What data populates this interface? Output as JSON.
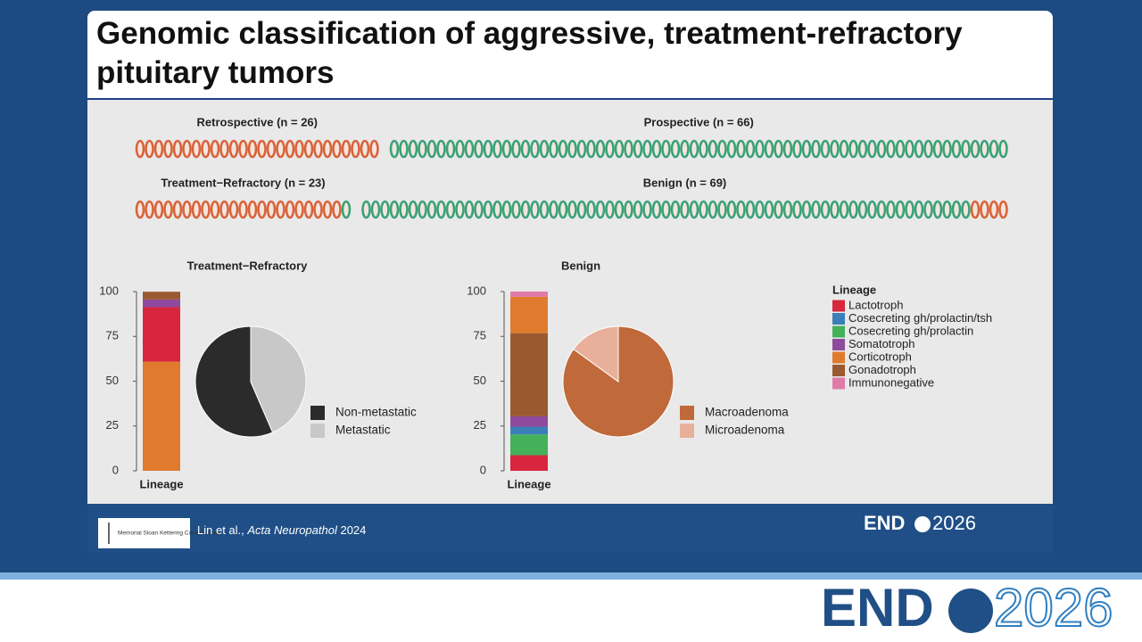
{
  "title": "Genomic classification of aggressive, treatment-refractory pituitary tumors",
  "cohort_rows": [
    {
      "groups": [
        {
          "label": "Retrospective (n = 26)",
          "segments": [
            {
              "count": 26,
              "color": "#d9633b"
            }
          ]
        },
        {
          "label": "Prospective (n = 66)",
          "segments": [
            {
              "count": 66,
              "color": "#3aa17a"
            }
          ]
        }
      ]
    },
    {
      "groups": [
        {
          "label": "Treatment−Refractory (n = 23)",
          "segments": [
            {
              "count": 22,
              "color": "#d9633b"
            },
            {
              "count": 1,
              "color": "#3aa17a"
            }
          ]
        },
        {
          "label": "Benign (n = 69)",
          "segments": [
            {
              "count": 65,
              "color": "#3aa17a"
            },
            {
              "count": 4,
              "color": "#d9633b"
            }
          ]
        }
      ]
    }
  ],
  "lineage_legend": {
    "title": "Lineage",
    "items": [
      {
        "name": "Lactotroph",
        "color": "#d7263d"
      },
      {
        "name": "Cosecreting gh/prolactin/tsh",
        "color": "#3a7fb8"
      },
      {
        "name": "Cosecreting gh/prolactin",
        "color": "#44b05a"
      },
      {
        "name": "Somatotroph",
        "color": "#8e4a9c"
      },
      {
        "name": "Corticotroph",
        "color": "#e07b2e"
      },
      {
        "name": "Gonadotroph",
        "color": "#9a5a30"
      },
      {
        "name": "Immunonegative",
        "color": "#e07aa8"
      }
    ]
  },
  "chart_data": [
    {
      "type": "bar",
      "stacked": true,
      "title": "Treatment−Refractory",
      "x_label": "Lineage",
      "categories": [
        null
      ],
      "ylim": [
        0,
        100
      ],
      "yticks": [
        0,
        25,
        50,
        75,
        100
      ],
      "series": [
        {
          "name": "Corticotroph",
          "color": "#e07b2e",
          "values": [
            60.9
          ]
        },
        {
          "name": "Lactotroph",
          "color": "#d7263d",
          "values": [
            30.4
          ]
        },
        {
          "name": "Somatotroph",
          "color": "#8e4a9c",
          "values": [
            4.3
          ]
        },
        {
          "name": "Gonadotroph",
          "color": "#9a5a30",
          "values": [
            4.3
          ]
        }
      ]
    },
    {
      "type": "pie",
      "categories": [
        "Non-metastatic",
        "Metastatic"
      ],
      "values": [
        56.5,
        43.5
      ],
      "colors": [
        "#2b2b2b",
        "#c8c8c8"
      ],
      "counterclock": true
    },
    {
      "type": "bar",
      "stacked": true,
      "title": "Benign",
      "x_label": "Lineage",
      "categories": [
        null
      ],
      "ylim": [
        0,
        100
      ],
      "yticks": [
        0,
        25,
        50,
        75,
        100
      ],
      "series": [
        {
          "name": "Lactotroph",
          "color": "#d7263d",
          "values": [
            8.7
          ]
        },
        {
          "name": "Cosecreting gh/prolactin",
          "color": "#44b05a",
          "values": [
            11.6
          ]
        },
        {
          "name": "Cosecreting gh/prolactin/tsh",
          "color": "#3a7fb8",
          "values": [
            4.3
          ]
        },
        {
          "name": "Somatotroph",
          "color": "#8e4a9c",
          "values": [
            5.8
          ]
        },
        {
          "name": "Gonadotroph",
          "color": "#9a5a30",
          "values": [
            46.4
          ]
        },
        {
          "name": "Corticotroph",
          "color": "#e07b2e",
          "values": [
            20.3
          ]
        },
        {
          "name": "Immunonegative",
          "color": "#e07aa8",
          "values": [
            2.9
          ]
        }
      ]
    },
    {
      "type": "pie",
      "categories": [
        "Macroadenoma",
        "Microadenoma"
      ],
      "values": [
        85,
        15
      ],
      "colors": [
        "#c0693a",
        "#e8b09a"
      ],
      "counterclock": false
    }
  ],
  "footer": {
    "logo_text": "Memorial Sloan Kettering Cancer Center",
    "citation": {
      "authors": "Lin et al.,",
      "journal": "Acta Neuropathol",
      "year": "2024"
    },
    "brand": {
      "left": "END",
      "right": "2026"
    }
  }
}
